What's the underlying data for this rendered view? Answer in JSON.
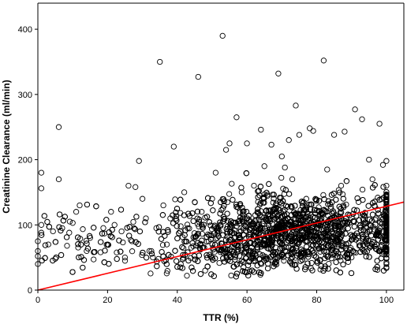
{
  "chart_data": {
    "type": "scatter",
    "title": "",
    "xlabel": "TTR (%)",
    "ylabel": "Creatinine Clearance (ml/min)",
    "xlim": [
      0,
      105
    ],
    "ylim": [
      0,
      440
    ],
    "x_ticks": [
      0,
      20,
      40,
      60,
      80,
      100
    ],
    "y_ticks": [
      0,
      100,
      200,
      300,
      400
    ],
    "grid": false,
    "legend": "none",
    "colors": {
      "points": "#000000",
      "fit_line": "#ff0000"
    },
    "fit_line": {
      "x": [
        0,
        105
      ],
      "y": [
        0,
        135
      ]
    },
    "points": [
      [
        35,
        350
      ],
      [
        53,
        390
      ],
      [
        82,
        352
      ],
      [
        46,
        327
      ],
      [
        69,
        332
      ],
      [
        74,
        283
      ],
      [
        78,
        248
      ],
      [
        6,
        250
      ],
      [
        57,
        265
      ],
      [
        91,
        277
      ],
      [
        98,
        255
      ],
      [
        93,
        262
      ],
      [
        85,
        238
      ],
      [
        88,
        243
      ],
      [
        39,
        220
      ],
      [
        64,
        246
      ],
      [
        67,
        223
      ],
      [
        72,
        230
      ],
      [
        79,
        244
      ],
      [
        29,
        198
      ],
      [
        60,
        225
      ],
      [
        55,
        225
      ],
      [
        54,
        215
      ],
      [
        100,
        198
      ],
      [
        99,
        192
      ],
      [
        95,
        200
      ],
      [
        75,
        238
      ],
      [
        1,
        180
      ],
      [
        1,
        156
      ],
      [
        6,
        170
      ],
      [
        26,
        160
      ],
      [
        28,
        158
      ],
      [
        0,
        40
      ],
      [
        0,
        60
      ],
      [
        0,
        75
      ],
      [
        1,
        88
      ],
      [
        1,
        100
      ],
      [
        0,
        52
      ],
      [
        3,
        70
      ],
      [
        5,
        48
      ],
      [
        7,
        95
      ],
      [
        9,
        88
      ],
      [
        10,
        103
      ],
      [
        11,
        120
      ],
      [
        12,
        130
      ],
      [
        14,
        60
      ],
      [
        15,
        80
      ],
      [
        16,
        47
      ],
      [
        18,
        58
      ],
      [
        20,
        70
      ],
      [
        21,
        120
      ],
      [
        22,
        100
      ],
      [
        24,
        90
      ],
      [
        25,
        45
      ],
      [
        27,
        75
      ],
      [
        30,
        140
      ],
      [
        31,
        110
      ],
      [
        32,
        60
      ],
      [
        33,
        50
      ],
      [
        34,
        95
      ],
      [
        36,
        130
      ],
      [
        37,
        70
      ],
      [
        38,
        110
      ],
      [
        41,
        40
      ],
      [
        42,
        150
      ],
      [
        43,
        95
      ],
      [
        44,
        65
      ],
      [
        45,
        135
      ],
      [
        47,
        120
      ],
      [
        48,
        30
      ],
      [
        49,
        75
      ],
      [
        50,
        140
      ],
      [
        51,
        180
      ],
      [
        52,
        90
      ],
      [
        56,
        55
      ],
      [
        58,
        130
      ],
      [
        59,
        35
      ],
      [
        61,
        100
      ],
      [
        62,
        160
      ],
      [
        63,
        65
      ],
      [
        65,
        190
      ],
      [
        66,
        115
      ],
      [
        68,
        40
      ],
      [
        70,
        205
      ],
      [
        71,
        85
      ],
      [
        73,
        170
      ],
      [
        76,
        60
      ],
      [
        77,
        140
      ],
      [
        80,
        95
      ],
      [
        81,
        45
      ],
      [
        83,
        185
      ],
      [
        84,
        125
      ],
      [
        86,
        70
      ],
      [
        87,
        160
      ],
      [
        89,
        105
      ],
      [
        90,
        50
      ],
      [
        92,
        135
      ],
      [
        94,
        85
      ],
      [
        96,
        170
      ],
      [
        97,
        110
      ],
      [
        100,
        40
      ],
      [
        100,
        60
      ],
      [
        100,
        75
      ],
      [
        100,
        90
      ],
      [
        100,
        105
      ],
      [
        100,
        120
      ],
      [
        100,
        135
      ],
      [
        100,
        145
      ],
      [
        100,
        160
      ],
      [
        100,
        35
      ]
    ]
  }
}
